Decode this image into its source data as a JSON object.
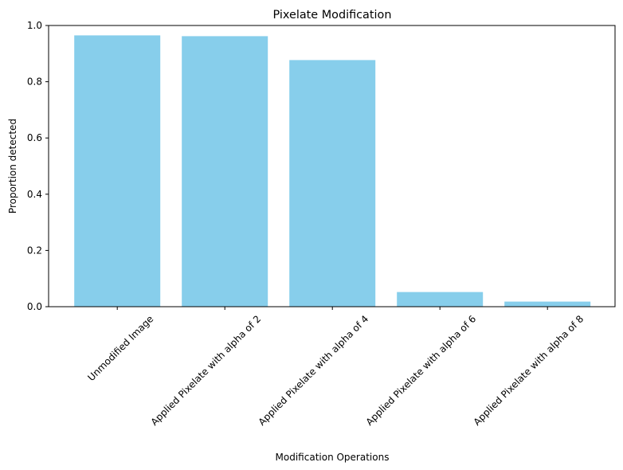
{
  "chart_data": {
    "type": "bar",
    "title": "Pixelate Modification",
    "xlabel": "Modification Operations",
    "ylabel": "Proportion detected",
    "categories": [
      "Unmodified Image",
      "Applied Pixelate with alpha of 2",
      "Applied Pixelate with alpha of 4",
      "Applied Pixelate with alpha of 6",
      "Applied Pixelate with alpha of 8"
    ],
    "values": [
      0.965,
      0.962,
      0.877,
      0.052,
      0.018
    ],
    "ylim": [
      0,
      1.0
    ],
    "yticks": [
      "0.0",
      "0.2",
      "0.4",
      "0.6",
      "0.8",
      "1.0"
    ],
    "bar_color": "#87CEEB",
    "grid": false,
    "legend": false
  }
}
